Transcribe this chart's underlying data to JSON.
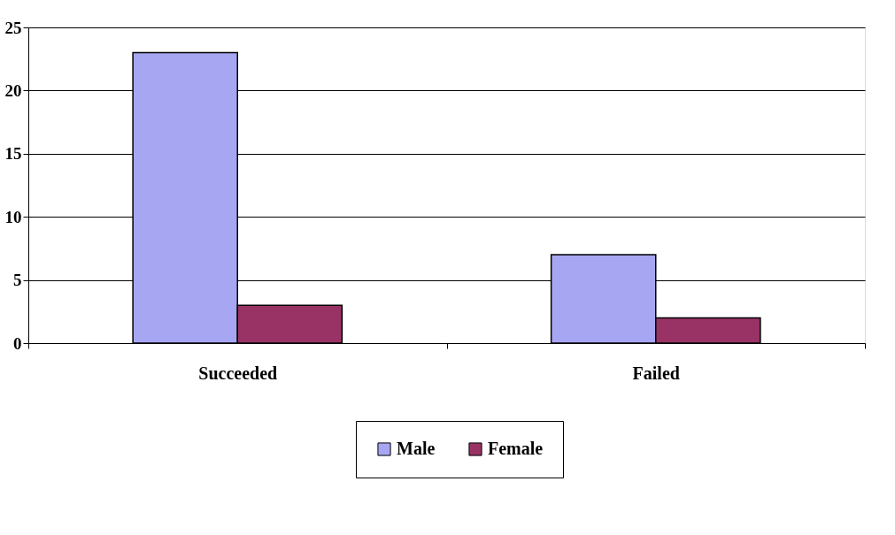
{
  "chart_data": {
    "type": "bar",
    "categories": [
      "Succeeded",
      "Failed"
    ],
    "series": [
      {
        "name": "Male",
        "color": "#a6a6f2",
        "values": [
          23,
          7
        ]
      },
      {
        "name": "Female",
        "color": "#993366",
        "values": [
          3,
          2
        ]
      }
    ],
    "ylim": [
      0,
      25
    ],
    "yticks": [
      0,
      5,
      10,
      15,
      20,
      25
    ],
    "grid": "y",
    "legend": "bottom"
  }
}
